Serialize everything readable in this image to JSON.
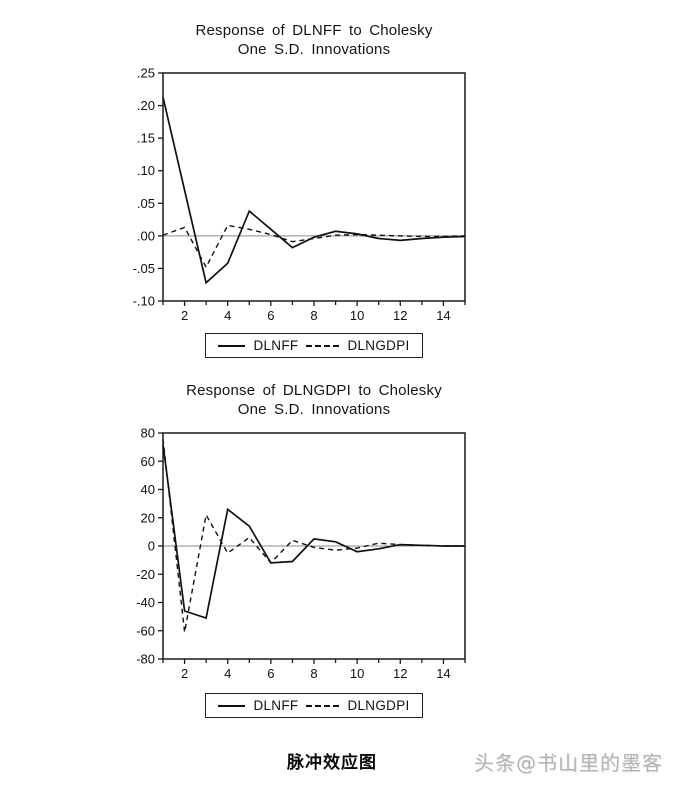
{
  "page": {
    "caption": "脉冲效应图",
    "watermark": "头条@书山里的墨客"
  },
  "colors": {
    "line": "#111111",
    "axis": "#1a1a1a",
    "zero_line": "#8a8a8a",
    "watermark": "#b3b3b3"
  },
  "chart_data": [
    {
      "type": "line",
      "title": "Response of DLNFF to Cholesky",
      "subtitle": "One S.D. Innovations",
      "x": [
        1,
        2,
        3,
        4,
        5,
        6,
        7,
        8,
        9,
        10,
        11,
        12,
        13,
        14,
        15
      ],
      "xlim": [
        1,
        15
      ],
      "ylim": [
        -0.1,
        0.25
      ],
      "grid": false,
      "zero_line": true,
      "legend_position": "bottom-center",
      "xticks_labeled": [
        2,
        4,
        6,
        8,
        10,
        12,
        14
      ],
      "yticks": [
        {
          "v": 0.25,
          "label": ".25"
        },
        {
          "v": 0.2,
          "label": ".20"
        },
        {
          "v": 0.15,
          "label": ".15"
        },
        {
          "v": 0.1,
          "label": ".10"
        },
        {
          "v": 0.05,
          "label": ".05"
        },
        {
          "v": 0.0,
          "label": ".00"
        },
        {
          "v": -0.05,
          "label": "-.05"
        },
        {
          "v": -0.1,
          "label": "-.10"
        }
      ],
      "series": [
        {
          "name": "DLNFF",
          "style": "solid",
          "values": [
            0.213,
            0.07,
            -0.072,
            -0.042,
            0.038,
            0.01,
            -0.018,
            -0.002,
            0.007,
            0.003,
            -0.004,
            -0.007,
            -0.004,
            -0.002,
            -0.001
          ]
        },
        {
          "name": "DLNGDPI",
          "style": "dashed",
          "values": [
            0.001,
            0.013,
            -0.048,
            0.016,
            0.01,
            0.002,
            -0.009,
            -0.004,
            0.001,
            0.002,
            0.001,
            0.0,
            -0.001,
            -0.001,
            0.0
          ]
        }
      ]
    },
    {
      "type": "line",
      "title": "Response of DLNGDPI to Cholesky",
      "subtitle": "One S.D. Innovations",
      "x": [
        1,
        2,
        3,
        4,
        5,
        6,
        7,
        8,
        9,
        10,
        11,
        12,
        13,
        14,
        15
      ],
      "xlim": [
        1,
        15
      ],
      "ylim": [
        -80,
        80
      ],
      "grid": false,
      "zero_line": true,
      "legend_position": "bottom-center",
      "xticks_labeled": [
        2,
        4,
        6,
        8,
        10,
        12,
        14
      ],
      "yticks": [
        {
          "v": 80,
          "label": "80"
        },
        {
          "v": 60,
          "label": "60"
        },
        {
          "v": 40,
          "label": "40"
        },
        {
          "v": 20,
          "label": "20"
        },
        {
          "v": 0,
          "label": "0"
        },
        {
          "v": -20,
          "label": "-20"
        },
        {
          "v": -40,
          "label": "-40"
        },
        {
          "v": -60,
          "label": "-60"
        },
        {
          "v": -80,
          "label": "-80"
        }
      ],
      "series": [
        {
          "name": "DLNFF",
          "style": "solid",
          "values": [
            72,
            -46,
            -51,
            26,
            14,
            -12,
            -11,
            5,
            3,
            -4,
            -2,
            1,
            0.5,
            0,
            0
          ]
        },
        {
          "name": "DLNGDPI",
          "style": "dashed",
          "values": [
            76,
            -61,
            22,
            -5,
            6,
            -12,
            4,
            -1,
            -3,
            -1.5,
            2,
            1,
            0.5,
            0,
            0
          ]
        }
      ]
    }
  ]
}
